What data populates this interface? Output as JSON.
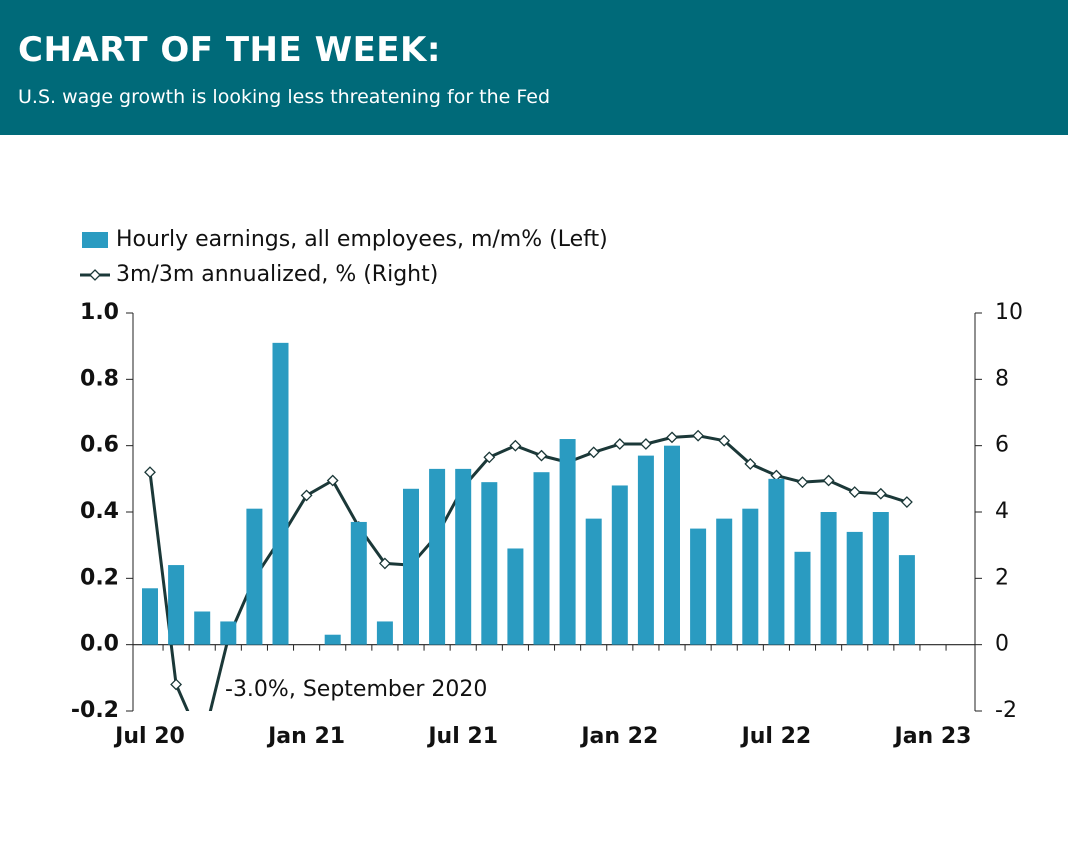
{
  "header": {
    "title": "CHART OF THE WEEK:",
    "subtitle": "U.S. wage growth is looking less threatening for the Fed"
  },
  "chart_data": {
    "type": "bar_line",
    "categories": [
      "Jul 20",
      null,
      null,
      null,
      null,
      null,
      "Jan 21",
      null,
      null,
      null,
      null,
      null,
      "Jul 21",
      null,
      null,
      null,
      null,
      null,
      "Jan 22",
      null,
      null,
      null,
      null,
      null,
      "Jul 22",
      null,
      null,
      null,
      null,
      null,
      "Jan 23"
    ],
    "series": [
      {
        "name": "Hourly earnings, all employees, m/m% (Left)",
        "type": "bar",
        "color": "#2a9bc1",
        "values": [
          0.17,
          0.24,
          0.1,
          0.07,
          0.41,
          0.91,
          0.0,
          0.03,
          0.37,
          0.07,
          0.47,
          0.53,
          0.53,
          0.49,
          0.29,
          0.52,
          0.62,
          0.38,
          0.48,
          0.57,
          0.6,
          0.35,
          0.38,
          0.41,
          0.5,
          0.28,
          0.4,
          0.34,
          0.4,
          0.27,
          null
        ]
      },
      {
        "name": "3m/3m annualized, % (Right)",
        "type": "line",
        "axis": "y2",
        "color": "#1b3838",
        "values": [
          5.2,
          -1.2,
          -3.0,
          0.2,
          2.0,
          3.2,
          4.5,
          4.95,
          3.55,
          2.45,
          2.4,
          3.3,
          4.75,
          5.65,
          6.0,
          5.7,
          5.5,
          5.8,
          6.05,
          6.05,
          6.25,
          6.3,
          6.15,
          5.45,
          5.1,
          4.9,
          4.95,
          4.6,
          4.55,
          4.3,
          null
        ]
      }
    ],
    "ylim": [
      -0.2,
      1.0
    ],
    "yticks": [
      -0.2,
      {
        "value": 0,
        "label": "0.0"
      },
      0.2,
      0.4,
      0.6,
      0.8,
      {
        "value": 1,
        "label": "1.0"
      }
    ],
    "y2lim": [
      -2,
      10
    ],
    "y2ticks": [
      -2,
      0,
      2,
      4,
      6,
      8,
      10
    ],
    "annotation": "-3.0%, September 2020"
  }
}
